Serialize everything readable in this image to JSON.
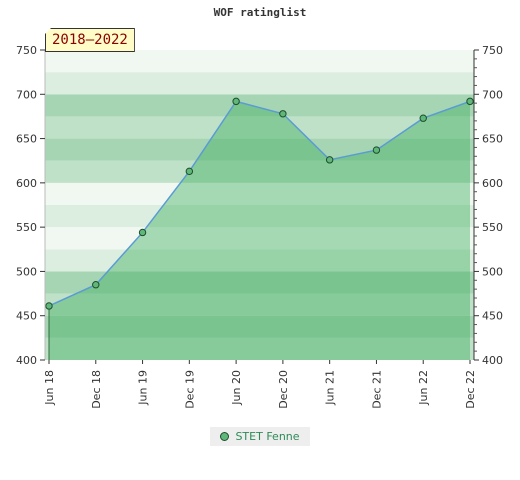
{
  "chart_data": {
    "type": "area",
    "title": "WOF ratinglist",
    "badge": "2018–2022",
    "categories": [
      "Jun 18",
      "Dec 18",
      "Jun 19",
      "Dec 19",
      "Jun 20",
      "Dec 20",
      "Jun 21",
      "Dec 21",
      "Jun 22",
      "Dec 22"
    ],
    "series": [
      {
        "name": "STET Fenne",
        "values": [
          461,
          485,
          544,
          613,
          692,
          678,
          626,
          637,
          673,
          692
        ]
      }
    ],
    "ylim": [
      400,
      750
    ],
    "yticks": [
      400,
      450,
      500,
      550,
      600,
      650,
      700,
      750
    ],
    "legend_position": "bottom-center",
    "grid": true,
    "colors": {
      "line": "#5b9bd5",
      "fill": "#3cae5c",
      "marker": "#5fb77a",
      "marker_edge": "#1e4d2b"
    }
  }
}
